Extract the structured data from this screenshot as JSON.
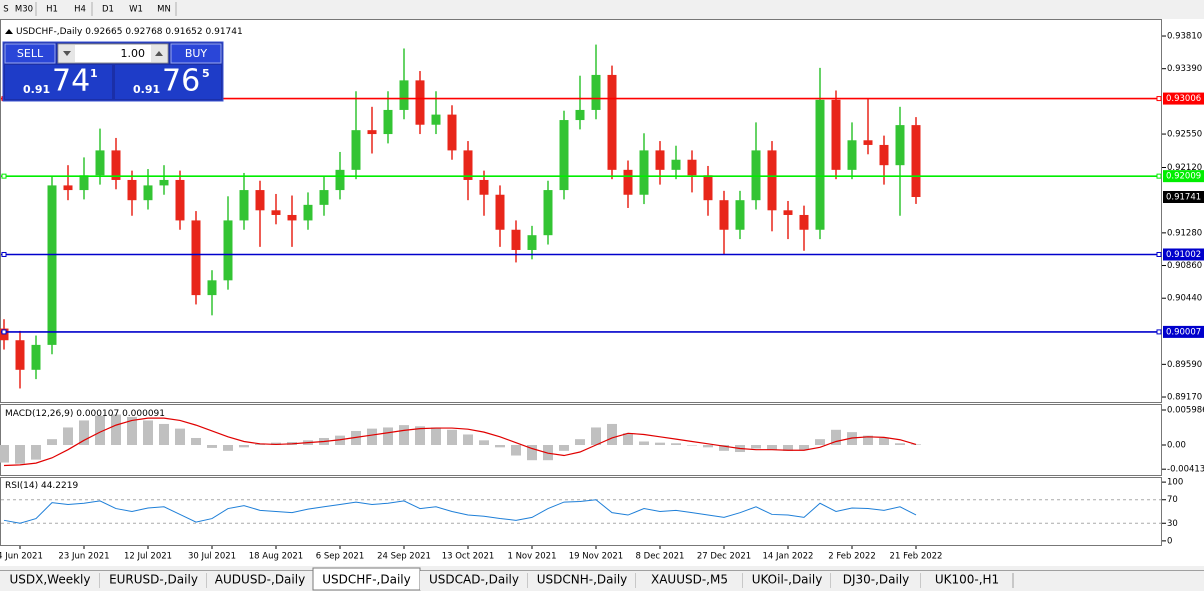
{
  "toolbar": {
    "timeframes": [
      "S",
      "M30",
      "H1",
      "H4",
      "D1",
      "W1",
      "MN"
    ]
  },
  "trade_panel": {
    "sell_label": "SELL",
    "buy_label": "BUY",
    "lot": "1.00",
    "sell_price": {
      "prefix": "0.91",
      "big": "74",
      "sup": "1"
    },
    "buy_price": {
      "prefix": "0.91",
      "big": "76",
      "sup": "5"
    }
  },
  "chart_data": [
    {
      "type": "candlestick",
      "title": "USDCHF-,Daily",
      "readout": [
        0.92665,
        0.92768,
        0.91652,
        0.91741
      ],
      "up_color": "#33c433",
      "down_color": "#e8261a",
      "ylim": [
        0.89106,
        0.94016
      ],
      "yticks": [
        {
          "value": 0.9381,
          "label": "0.93810"
        },
        {
          "value": 0.9339,
          "label": "0.93390"
        },
        {
          "value": 0.9255,
          "label": "0.92550"
        },
        {
          "value": 0.9212,
          "label": "0.92120"
        },
        {
          "value": 0.9128,
          "label": "0.91280"
        },
        {
          "value": 0.9086,
          "label": "0.90860"
        },
        {
          "value": 0.9044,
          "label": "0.90440"
        },
        {
          "value": 0.8959,
          "label": "0.89590"
        },
        {
          "value": 0.8917,
          "label": "0.89170"
        }
      ],
      "levels": [
        {
          "value": 0.93006,
          "color": "#ff0000"
        },
        {
          "value": 0.92009,
          "color": "#00ee00"
        },
        {
          "value": 0.91002,
          "color": "#0000cc"
        },
        {
          "value": 0.90007,
          "color": "#0000cc"
        }
      ],
      "last_price": 0.91741,
      "categories": [
        null,
        "4 Jun 2021",
        null,
        null,
        null,
        "23 Jun 2021",
        null,
        null,
        null,
        "12 Jul 2021",
        null,
        null,
        null,
        "30 Jul 2021",
        null,
        null,
        null,
        "18 Aug 2021",
        null,
        null,
        null,
        "6 Sep 2021",
        null,
        null,
        null,
        "24 Sep 2021",
        null,
        null,
        null,
        "13 Oct 2021",
        null,
        null,
        null,
        "1 Nov 2021",
        null,
        null,
        null,
        "19 Nov 2021",
        null,
        null,
        null,
        "8 Dec 2021",
        null,
        null,
        null,
        "27 Dec 2021",
        null,
        null,
        null,
        "14 Jan 2022",
        null,
        null,
        null,
        "2 Feb 2022",
        null,
        null,
        null,
        "21 Feb 2022"
      ],
      "candles": {
        "open": [
          0.9005,
          0.899,
          0.8952,
          0.8984,
          0.9189,
          0.9183,
          0.9202,
          0.9234,
          0.9196,
          0.917,
          0.9189,
          0.9196,
          0.9144,
          0.9048,
          0.9067,
          0.9144,
          0.9183,
          0.9157,
          0.9151,
          0.9144,
          0.9164,
          0.9183,
          0.9209,
          0.926,
          0.9255,
          0.9286,
          0.9324,
          0.9267,
          0.928,
          0.9234,
          0.9196,
          0.9177,
          0.9132,
          0.9106,
          0.9125,
          0.9183,
          0.9273,
          0.9286,
          0.9331,
          0.9209,
          0.9177,
          0.9234,
          0.9209,
          0.9222,
          0.9202,
          0.917,
          0.9132,
          0.917,
          0.9234,
          0.9157,
          0.9151,
          0.9132,
          0.9299,
          0.9209,
          0.9247,
          0.9241,
          0.9215,
          0.92665
        ],
        "high": [
          0.9017,
          0.9002,
          0.8996,
          0.9201,
          0.9215,
          0.9225,
          0.9262,
          0.925,
          0.9208,
          0.921,
          0.9215,
          0.9208,
          0.9156,
          0.908,
          0.9175,
          0.9205,
          0.9195,
          0.9178,
          0.9176,
          0.918,
          0.92,
          0.9232,
          0.931,
          0.929,
          0.931,
          0.9365,
          0.9336,
          0.931,
          0.9292,
          0.9246,
          0.9208,
          0.9189,
          0.9144,
          0.9137,
          0.9195,
          0.9285,
          0.933,
          0.937,
          0.9343,
          0.9221,
          0.9256,
          0.9246,
          0.924,
          0.9234,
          0.9214,
          0.9182,
          0.9182,
          0.927,
          0.9246,
          0.9169,
          0.9163,
          0.934,
          0.9311,
          0.927,
          0.93,
          0.9253,
          0.929,
          0.92768
        ],
        "low": [
          0.8978,
          0.8928,
          0.894,
          0.8972,
          0.917,
          0.9171,
          0.919,
          0.9184,
          0.915,
          0.9158,
          0.9177,
          0.9132,
          0.9036,
          0.9022,
          0.9055,
          0.9132,
          0.911,
          0.9139,
          0.911,
          0.9132,
          0.915,
          0.9171,
          0.9197,
          0.923,
          0.9243,
          0.9274,
          0.9255,
          0.9255,
          0.9222,
          0.917,
          0.915,
          0.911,
          0.909,
          0.9094,
          0.9113,
          0.9171,
          0.9261,
          0.9274,
          0.9197,
          0.916,
          0.9165,
          0.919,
          0.9197,
          0.918,
          0.915,
          0.91,
          0.912,
          0.9158,
          0.913,
          0.912,
          0.9105,
          0.912,
          0.9197,
          0.9197,
          0.9229,
          0.919,
          0.915,
          0.91652
        ],
        "close": [
          0.899,
          0.8952,
          0.8984,
          0.9189,
          0.9183,
          0.9202,
          0.9234,
          0.9196,
          0.917,
          0.9189,
          0.9196,
          0.9144,
          0.9048,
          0.9067,
          0.9144,
          0.9183,
          0.9157,
          0.9151,
          0.9144,
          0.9164,
          0.9183,
          0.9209,
          0.926,
          0.9255,
          0.9286,
          0.9324,
          0.9267,
          0.928,
          0.9234,
          0.9196,
          0.9177,
          0.9132,
          0.9106,
          0.9125,
          0.9183,
          0.9273,
          0.9286,
          0.9331,
          0.9209,
          0.9177,
          0.9234,
          0.9209,
          0.9222,
          0.9202,
          0.917,
          0.9132,
          0.917,
          0.9234,
          0.9157,
          0.9151,
          0.9132,
          0.9299,
          0.9209,
          0.9247,
          0.9241,
          0.9215,
          0.92665,
          0.91741
        ]
      }
    },
    {
      "type": "macd",
      "title": "MACD(12,26,9)",
      "readout": [
        0.000107,
        9.1e-05
      ],
      "ylim": [
        -0.00513,
        0.00684
      ],
      "yticks": [
        0.005986,
        {
          "value": 0,
          "label": "0.00"
        },
        -0.004136
      ],
      "series": [
        {
          "color": "#c0c0c0",
          "values": [
            -0.003,
            -0.0032,
            -0.0025,
            0.001,
            0.003,
            0.0042,
            0.005,
            0.0052,
            0.0048,
            0.0042,
            0.0036,
            0.0028,
            0.0012,
            -0.0005,
            -0.001,
            -0.0004,
            0.0002,
            0.0004,
            0.0005,
            0.0008,
            0.0012,
            0.0016,
            0.0024,
            0.0028,
            0.003,
            0.0034,
            0.0032,
            0.003,
            0.0026,
            0.0018,
            0.0008,
            -0.0004,
            -0.0018,
            -0.0026,
            -0.0026,
            -0.001,
            0.001,
            0.003,
            0.0036,
            0.002,
            0.0006,
            0.0004,
            0.0003,
            0,
            -0.0004,
            -0.001,
            -0.0012,
            -0.0006,
            -0.0008,
            -0.001,
            -0.0008,
            0.001,
            0.0026,
            0.0022,
            0.0016,
            0.0012,
            0.0003,
            0.000107
          ]
        },
        {
          "color": "#e00000",
          "values": [
            -0.0035,
            -0.0034,
            -0.0031,
            -0.0022,
            -0.0008,
            0.0008,
            0.0022,
            0.0034,
            0.0042,
            0.0046,
            0.0046,
            0.0042,
            0.0034,
            0.0024,
            0.0014,
            0.0006,
            0.0002,
            0.0001,
            0.0002,
            0.0004,
            0.0006,
            0.0009,
            0.0013,
            0.0017,
            0.0021,
            0.0025,
            0.0028,
            0.0029,
            0.0029,
            0.0027,
            0.0022,
            0.0014,
            0.0004,
            -0.0006,
            -0.0014,
            -0.0018,
            -0.0012,
            0,
            0.0012,
            0.002,
            0.0018,
            0.0014,
            0.001,
            0.0006,
            0.0002,
            -0.0002,
            -0.0006,
            -0.0008,
            -0.0008,
            -0.0009,
            -0.0009,
            -0.0004,
            0.0006,
            0.0012,
            0.0014,
            0.0013,
            0.0009,
            9.1e-05
          ]
        }
      ]
    },
    {
      "type": "rsi",
      "title": "RSI(14)",
      "readout": 44.2219,
      "ylim": [
        -7,
        107
      ],
      "yticks": [
        100,
        70,
        30,
        0
      ],
      "dashed_levels": [
        70,
        30
      ],
      "color": "#1e7fd8",
      "values": [
        35,
        30,
        38,
        65,
        62,
        64,
        68,
        55,
        50,
        56,
        58,
        45,
        32,
        38,
        55,
        60,
        52,
        50,
        48,
        54,
        58,
        62,
        66,
        62,
        64,
        68,
        55,
        58,
        50,
        44,
        42,
        38,
        35,
        40,
        55,
        66,
        67,
        70,
        48,
        44,
        55,
        50,
        52,
        48,
        44,
        40,
        48,
        58,
        45,
        44,
        40,
        64,
        50,
        56,
        55,
        52,
        58,
        44.2219
      ]
    }
  ],
  "tabs": {
    "items": [
      "USDX,Weekly",
      "EURUSD-,Daily",
      "AUDUSD-,Daily",
      "USDCHF-,Daily",
      "USDCAD-,Daily",
      "USDCNH-,Daily",
      "XAUUSD-,M5",
      "UKOil-,Daily",
      "DJ30-,Daily",
      "UK100-,H1"
    ],
    "active": 3
  }
}
